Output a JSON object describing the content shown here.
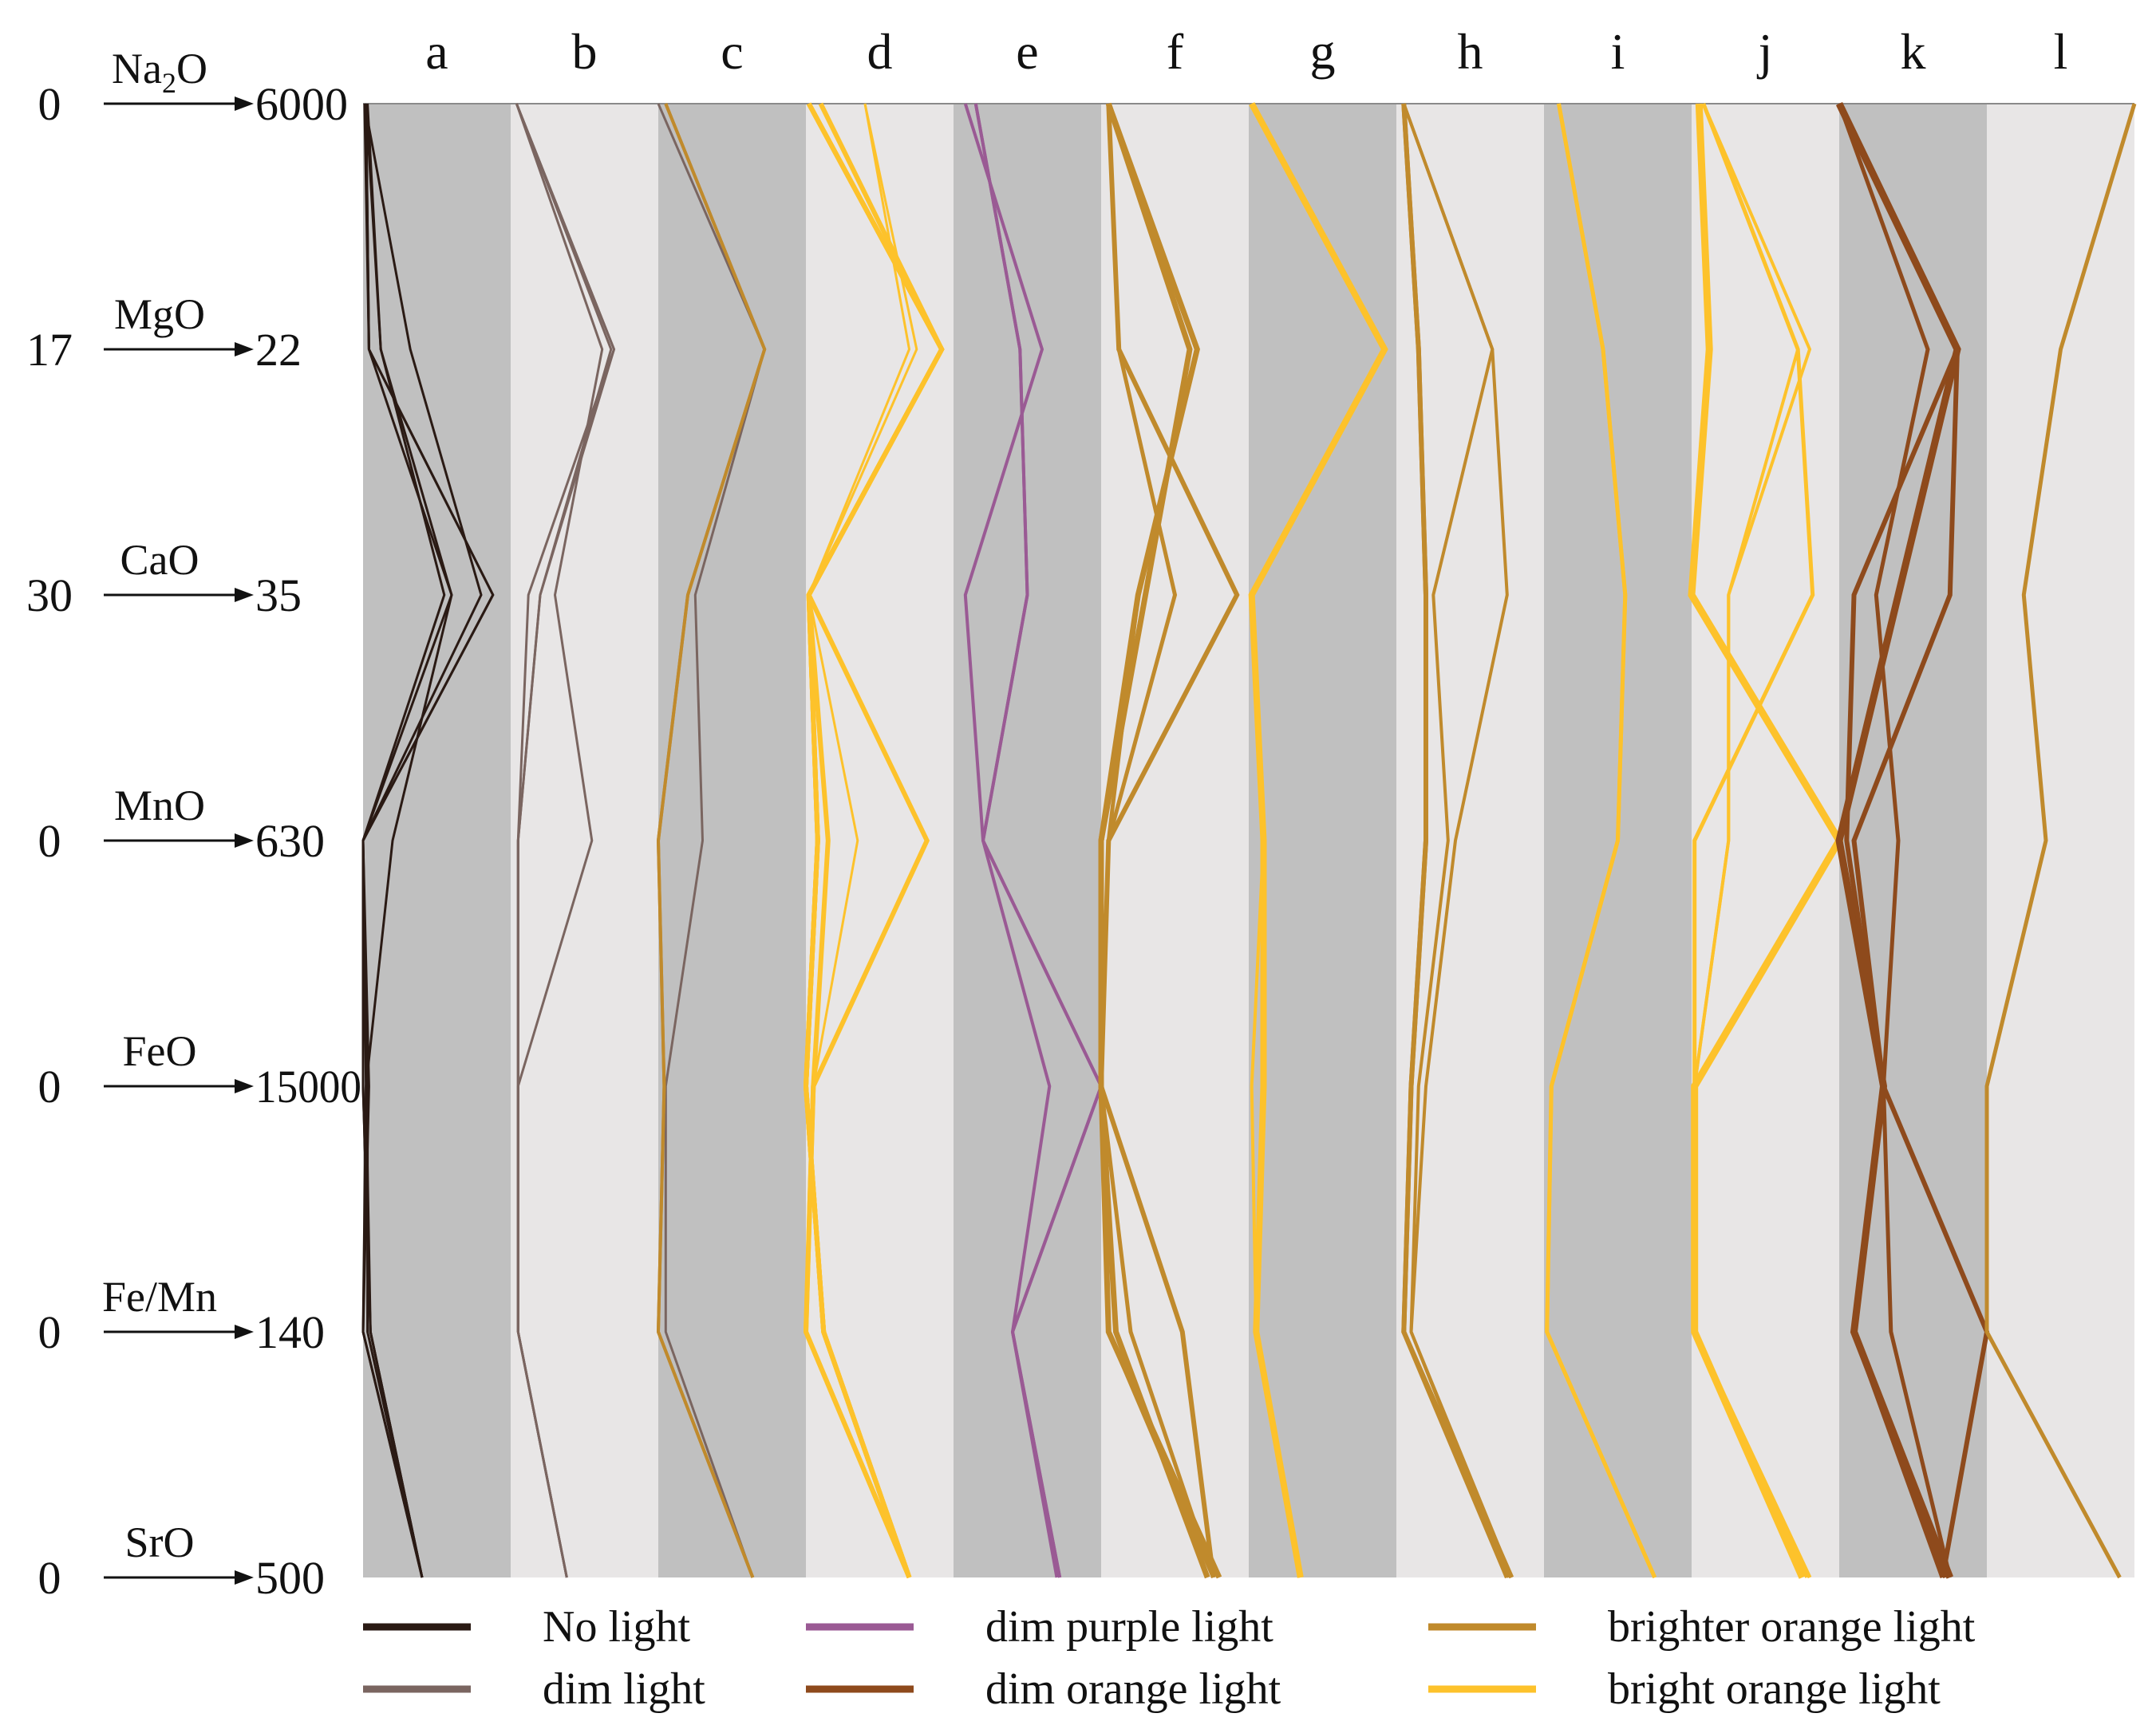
{
  "chart_data": {
    "type": "parallel-coordinates",
    "panels": [
      "a",
      "b",
      "c",
      "d",
      "e",
      "f",
      "g",
      "h",
      "i",
      "j",
      "k",
      "l"
    ],
    "axes": [
      {
        "name_main": "Na",
        "name_sub": "2",
        "name_tail": "O",
        "min_label": "0",
        "max_label": "6000",
        "range": [
          0,
          6000
        ]
      },
      {
        "name_main": "MgO",
        "name_sub": "",
        "name_tail": "",
        "min_label": "17",
        "max_label": "22",
        "range": [
          17,
          22
        ]
      },
      {
        "name_main": "CaO",
        "name_sub": "",
        "name_tail": "",
        "min_label": "30",
        "max_label": "35",
        "range": [
          30,
          35
        ]
      },
      {
        "name_main": "MnO",
        "name_sub": "",
        "name_tail": "",
        "min_label": "0",
        "max_label": "630",
        "range": [
          0,
          630
        ]
      },
      {
        "name_main": "FeO",
        "name_sub": "",
        "name_tail": "",
        "min_label": "0",
        "max_label": "15000",
        "range": [
          0,
          15000
        ]
      },
      {
        "name_main": "Fe/Mn",
        "name_sub": "",
        "name_tail": "",
        "min_label": "0",
        "max_label": "140",
        "range": [
          0,
          140
        ]
      },
      {
        "name_main": "SrO",
        "name_sub": "",
        "name_tail": "",
        "min_label": "0",
        "max_label": "500",
        "range": [
          0,
          500
        ]
      }
    ],
    "legend": [
      {
        "label": "No light",
        "color": "#2a1a14"
      },
      {
        "label": "dim light",
        "color": "#7a6560"
      },
      {
        "label": "dim purple light",
        "color": "#9a5a94"
      },
      {
        "label": "dim orange light",
        "color": "#8e4a1c"
      },
      {
        "label": "brighter orange light",
        "color": "#c08a2c"
      },
      {
        "label": "bright orange light",
        "color": "#fdc22b"
      }
    ],
    "panel_fill_dark": "#c0c0c0",
    "panel_fill_light": "#e8e6e6",
    "series": [
      {
        "panel": 0,
        "category": "No light",
        "width": 3,
        "values": [
          0.01,
          0.04,
          0.6,
          0.0,
          0.0,
          0.05,
          0.4
        ]
      },
      {
        "panel": 0,
        "category": "No light",
        "width": 3,
        "values": [
          0.01,
          0.32,
          0.8,
          0.0,
          0.0,
          0.05,
          0.4
        ]
      },
      {
        "panel": 0,
        "category": "No light",
        "width": 3,
        "values": [
          0.02,
          0.04,
          0.88,
          0.0,
          0.02,
          0.0,
          0.4
        ]
      },
      {
        "panel": 0,
        "category": "No light",
        "width": 3,
        "values": [
          0.03,
          0.12,
          0.6,
          0.2,
          0.02,
          0.05,
          0.4
        ]
      },
      {
        "panel": 0,
        "category": "No light",
        "width": 3,
        "values": [
          0.02,
          0.12,
          0.55,
          0.0,
          0.03,
          0.03,
          0.4
        ]
      },
      {
        "panel": 0,
        "category": "No light",
        "width": 3,
        "values": [
          0.02,
          0.04,
          0.88,
          0.0,
          0.04,
          0.0,
          0.4
        ]
      },
      {
        "panel": 1,
        "category": "dim light",
        "width": 3,
        "values": [
          0.04,
          0.68,
          0.2,
          0.05,
          0.05,
          0.05,
          0.38
        ]
      },
      {
        "panel": 1,
        "category": "dim light",
        "width": 3,
        "values": [
          0.04,
          0.62,
          0.3,
          0.55,
          0.05,
          0.05,
          0.38
        ]
      },
      {
        "panel": 1,
        "category": "dim light",
        "width": 3,
        "values": [
          0.04,
          0.7,
          0.2,
          0.05,
          0.05,
          0.05,
          0.38
        ]
      },
      {
        "panel": 1,
        "category": "dim light",
        "width": 3,
        "values": [
          0.04,
          0.7,
          0.12,
          0.05,
          0.05,
          0.05,
          0.38
        ]
      },
      {
        "panel": 2,
        "category": "dim light",
        "width": 3,
        "values": [
          0.0,
          0.72,
          0.25,
          0.3,
          0.05,
          0.05,
          0.64
        ]
      },
      {
        "panel": 2,
        "category": "brighter orange light",
        "width": 4,
        "values": [
          0.05,
          0.72,
          0.2,
          0.0,
          0.04,
          0.0,
          0.64
        ]
      },
      {
        "panel": 2,
        "category": "brighter orange light",
        "width": 4,
        "values": [
          0.05,
          0.72,
          0.2,
          0.0,
          0.04,
          0.0,
          0.64
        ]
      },
      {
        "panel": 3,
        "category": "bright orange light",
        "width": 6,
        "values": [
          0.02,
          0.92,
          0.02,
          0.82,
          0.05,
          0.0,
          0.7
        ]
      },
      {
        "panel": 3,
        "category": "bright orange light",
        "width": 6,
        "values": [
          0.02,
          0.92,
          0.02,
          0.08,
          0.0,
          0.12,
          0.7
        ]
      },
      {
        "panel": 3,
        "category": "bright orange light",
        "width": 6,
        "values": [
          0.1,
          0.92,
          0.02,
          0.15,
          0.05,
          0.0,
          0.7
        ]
      },
      {
        "panel": 3,
        "category": "bright orange light",
        "width": 6,
        "values": [
          0.02,
          0.92,
          0.02,
          0.08,
          0.0,
          0.12,
          0.7
        ]
      },
      {
        "panel": 3,
        "category": "bright orange light",
        "width": 6,
        "values": [
          0.02,
          0.92,
          0.02,
          0.08,
          0.0,
          0.12,
          0.7
        ]
      },
      {
        "panel": 3,
        "category": "bright orange light",
        "width": 6,
        "values": [
          0.02,
          0.92,
          0.02,
          0.08,
          0.0,
          0.12,
          0.7
        ]
      },
      {
        "panel": 3,
        "category": "bright orange light",
        "width": 3,
        "values": [
          0.4,
          0.7,
          0.02,
          0.35,
          0.05,
          0.0,
          0.7
        ]
      },
      {
        "panel": 3,
        "category": "bright orange light",
        "width": 3,
        "values": [
          0.4,
          0.75,
          0.02,
          0.15,
          0.05,
          0.0,
          0.7
        ]
      },
      {
        "panel": 4,
        "category": "dim purple light",
        "width": 4,
        "values": [
          0.08,
          0.6,
          0.08,
          0.2,
          1.0,
          0.4,
          0.7
        ]
      },
      {
        "panel": 4,
        "category": "dim purple light",
        "width": 4,
        "values": [
          0.15,
          0.45,
          0.5,
          0.2,
          0.65,
          0.4,
          0.72
        ]
      },
      {
        "panel": 4,
        "category": "dim purple light",
        "width": 4,
        "values": [
          0.15,
          0.45,
          0.5,
          0.2,
          1.0,
          0.4,
          0.72
        ]
      },
      {
        "panel": 5,
        "category": "brighter orange light",
        "width": 7,
        "values": [
          0.05,
          0.6,
          0.3,
          0.0,
          0.0,
          0.1,
          0.72
        ]
      },
      {
        "panel": 5,
        "category": "brighter orange light",
        "width": 7,
        "values": [
          0.05,
          0.65,
          0.25,
          0.0,
          0.0,
          0.05,
          0.8
        ]
      },
      {
        "panel": 5,
        "category": "brighter orange light",
        "width": 6,
        "values": [
          0.05,
          0.12,
          0.92,
          0.05,
          0.0,
          0.55,
          0.76
        ]
      },
      {
        "panel": 5,
        "category": "brighter orange light",
        "width": 5,
        "values": [
          0.05,
          0.12,
          0.5,
          0.05,
          0.0,
          0.2,
          0.76
        ]
      },
      {
        "panel": 5,
        "category": "brighter orange light",
        "width": 5,
        "values": [
          0.05,
          0.65,
          0.25,
          0.05,
          0.0,
          0.05,
          0.76
        ]
      },
      {
        "panel": 6,
        "category": "bright orange light",
        "width": 8,
        "values": [
          0.02,
          0.92,
          0.02,
          0.1,
          0.1,
          0.05,
          0.35
        ]
      },
      {
        "panel": 6,
        "category": "bright orange light",
        "width": 4,
        "values": [
          0.02,
          0.92,
          0.02,
          0.1,
          0.02,
          0.05,
          0.35
        ]
      },
      {
        "panel": 7,
        "category": "brighter orange light",
        "width": 6,
        "values": [
          0.05,
          0.15,
          0.2,
          0.2,
          0.1,
          0.05,
          0.75
        ]
      },
      {
        "panel": 7,
        "category": "brighter orange light",
        "width": 6,
        "values": [
          0.05,
          0.15,
          0.2,
          0.2,
          0.1,
          0.05,
          0.78
        ]
      },
      {
        "panel": 7,
        "category": "brighter orange light",
        "width": 4,
        "values": [
          0.05,
          0.65,
          0.75,
          0.4,
          0.2,
          0.1,
          0.76
        ]
      },
      {
        "panel": 7,
        "category": "brighter orange light",
        "width": 4,
        "values": [
          0.05,
          0.65,
          0.25,
          0.35,
          0.15,
          0.1,
          0.78
        ]
      },
      {
        "panel": 8,
        "category": "bright orange light",
        "width": 5,
        "values": [
          0.1,
          0.4,
          0.55,
          0.5,
          0.05,
          0.02,
          0.75
        ]
      },
      {
        "panel": 8,
        "category": "bright orange light",
        "width": 5,
        "values": [
          0.1,
          0.4,
          0.55,
          0.5,
          0.05,
          0.02,
          0.75
        ]
      },
      {
        "panel": 9,
        "category": "bright orange light",
        "width": 9,
        "values": [
          0.05,
          0.12,
          0.0,
          1.0,
          0.02,
          0.02,
          0.75
        ]
      },
      {
        "panel": 9,
        "category": "bright orange light",
        "width": 5,
        "values": [
          0.08,
          0.72,
          0.82,
          0.02,
          0.02,
          0.02,
          0.8
        ]
      },
      {
        "panel": 9,
        "category": "bright orange light",
        "width": 4,
        "values": [
          0.08,
          0.72,
          0.25,
          0.25,
          0.02,
          0.02,
          0.8
        ]
      },
      {
        "panel": 9,
        "category": "bright orange light",
        "width": 4,
        "values": [
          0.08,
          0.8,
          0.25,
          0.25,
          0.02,
          0.02,
          0.78
        ]
      },
      {
        "panel": 10,
        "category": "dim orange light",
        "width": 9,
        "values": [
          0.0,
          0.8,
          0.4,
          0.0,
          0.3,
          0.1,
          0.75
        ]
      },
      {
        "panel": 10,
        "category": "dim orange light",
        "width": 6,
        "values": [
          0.0,
          0.8,
          0.1,
          0.05,
          0.3,
          0.1,
          0.7
        ]
      },
      {
        "panel": 10,
        "category": "dim orange light",
        "width": 6,
        "values": [
          0.0,
          0.8,
          0.75,
          0.1,
          0.3,
          0.1,
          0.72
        ]
      },
      {
        "panel": 10,
        "category": "dim orange light",
        "width": 6,
        "values": [
          0.0,
          0.8,
          0.4,
          0.0,
          0.3,
          1.0,
          0.7
        ]
      },
      {
        "panel": 10,
        "category": "dim orange light",
        "width": 5,
        "values": [
          0.0,
          0.6,
          0.25,
          0.4,
          0.3,
          0.35,
          0.75
        ]
      },
      {
        "panel": 11,
        "category": "brighter orange light",
        "width": 5,
        "values": [
          1.0,
          0.5,
          0.25,
          0.4,
          0.0,
          0.0,
          0.9
        ]
      }
    ]
  }
}
